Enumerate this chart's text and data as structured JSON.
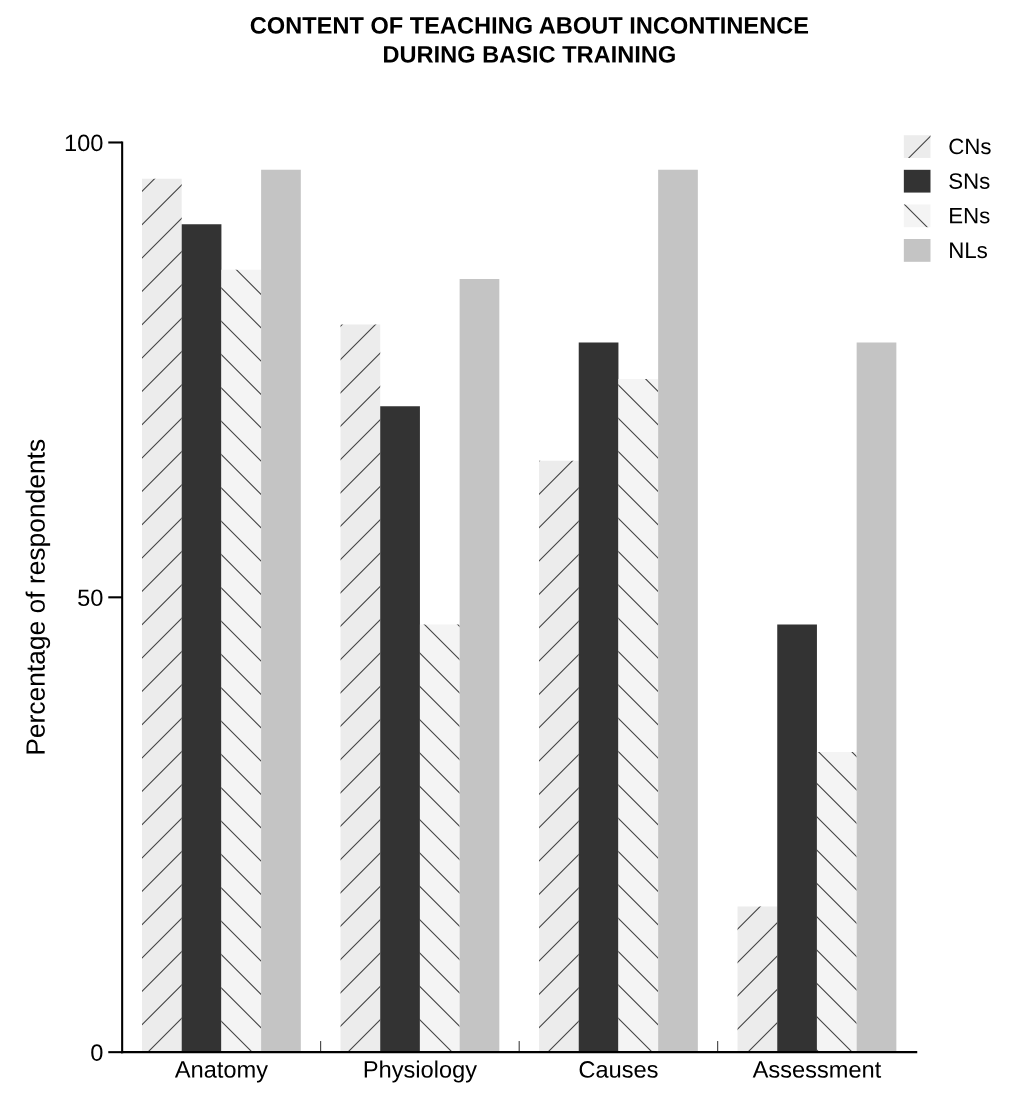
{
  "chart_data": {
    "type": "bar",
    "title": "CONTENT OF TEACHING ABOUT INCONTINENCE\nDURING BASIC TRAINING",
    "ylabel": "Percentage of respondents",
    "categories": [
      "Anatomy",
      "Physiology",
      "Causes",
      "Assessment"
    ],
    "series": [
      {
        "name": "CNs",
        "color": "#ececec",
        "values": [
          96,
          80,
          65,
          16
        ]
      },
      {
        "name": "SNs",
        "color": "#333333",
        "values": [
          91,
          71,
          78,
          47
        ]
      },
      {
        "name": "ENs",
        "color": "#f4f4f4",
        "values": [
          86,
          47,
          74,
          33
        ]
      },
      {
        "name": "NLs",
        "color": "#c4c4c4",
        "values": [
          97,
          85,
          97,
          78
        ]
      }
    ],
    "ylim": [
      0,
      100
    ],
    "yticks": [
      0,
      50,
      100
    ],
    "grid": false,
    "legend": "top right"
  }
}
